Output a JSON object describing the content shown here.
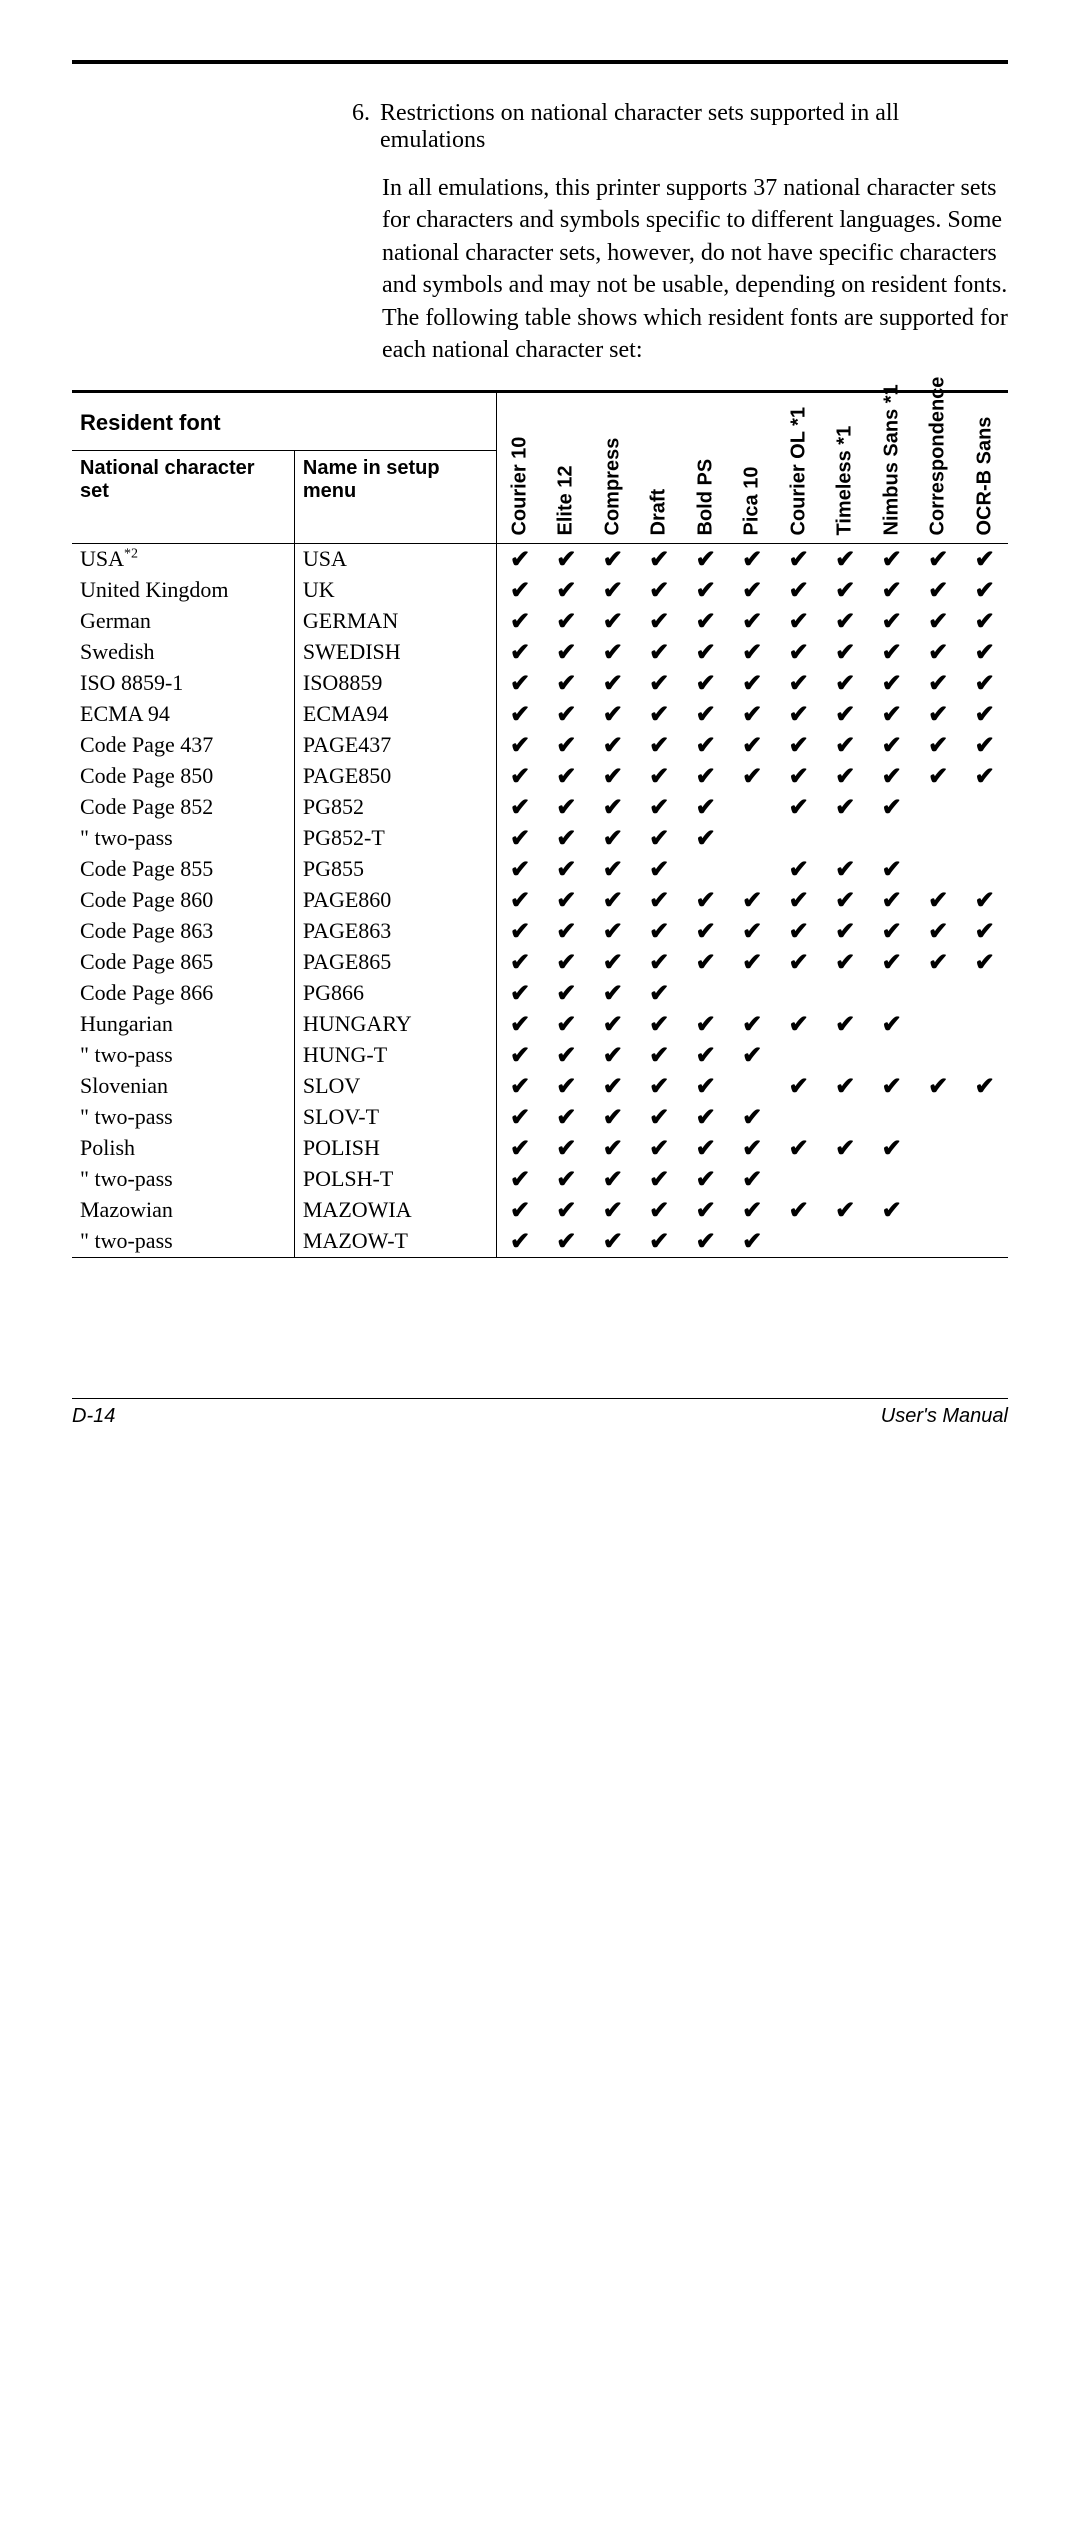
{
  "heading_num": "6.",
  "heading_text": "Restrictions on national character sets supported in all emulations",
  "body_para": "In all emulations, this printer supports 37 national character sets for characters and symbols specific to different languages.  Some national character sets, however, do not have specific characters and symbols and may not be usable, depending on resident fonts.  The following table shows which resident fonts are supported for each national character set:",
  "hdr_resident": "Resident font",
  "hdr_national": "National character set",
  "hdr_namein": "Name in setup menu",
  "font_cols": [
    "Courier 10",
    "Elite 12",
    "Compress",
    "Draft",
    "Bold PS",
    "Pica 10",
    "Courier OL *1",
    "Timeless *1",
    "Nimbus Sans *1",
    "Correspondence",
    "OCR-B Sans"
  ],
  "rows": [
    {
      "nat": "USA",
      "sup": "*2",
      "name": "USA",
      "c": [
        1,
        1,
        1,
        1,
        1,
        1,
        1,
        1,
        1,
        1,
        1
      ]
    },
    {
      "nat": "United Kingdom",
      "name": "UK",
      "c": [
        1,
        1,
        1,
        1,
        1,
        1,
        1,
        1,
        1,
        1,
        1
      ]
    },
    {
      "nat": "German",
      "name": "GERMAN",
      "c": [
        1,
        1,
        1,
        1,
        1,
        1,
        1,
        1,
        1,
        1,
        1
      ]
    },
    {
      "nat": "Swedish",
      "name": "SWEDISH",
      "c": [
        1,
        1,
        1,
        1,
        1,
        1,
        1,
        1,
        1,
        1,
        1
      ]
    },
    {
      "nat": "ISO 8859-1",
      "name": "ISO8859",
      "c": [
        1,
        1,
        1,
        1,
        1,
        1,
        1,
        1,
        1,
        1,
        1
      ]
    },
    {
      "nat": "ECMA 94",
      "name": "ECMA94",
      "c": [
        1,
        1,
        1,
        1,
        1,
        1,
        1,
        1,
        1,
        1,
        1
      ]
    },
    {
      "nat": "Code Page 437",
      "name": "PAGE437",
      "c": [
        1,
        1,
        1,
        1,
        1,
        1,
        1,
        1,
        1,
        1,
        1
      ]
    },
    {
      "nat": "Code Page 850",
      "name": "PAGE850",
      "c": [
        1,
        1,
        1,
        1,
        1,
        1,
        1,
        1,
        1,
        1,
        1
      ]
    },
    {
      "nat": "Code Page 852",
      "name": "PG852",
      "c": [
        1,
        1,
        1,
        1,
        1,
        0,
        1,
        1,
        1,
        0,
        0
      ]
    },
    {
      "nat": "\"    two-pass",
      "name": "PG852-T",
      "c": [
        1,
        1,
        1,
        1,
        1,
        0,
        0,
        0,
        0,
        0,
        0
      ]
    },
    {
      "nat": "Code Page 855",
      "name": "PG855",
      "c": [
        1,
        1,
        1,
        1,
        0,
        0,
        1,
        1,
        1,
        0,
        0
      ]
    },
    {
      "nat": "Code Page 860",
      "name": "PAGE860",
      "c": [
        1,
        1,
        1,
        1,
        1,
        1,
        1,
        1,
        1,
        1,
        1
      ]
    },
    {
      "nat": "Code Page 863",
      "name": "PAGE863",
      "c": [
        1,
        1,
        1,
        1,
        1,
        1,
        1,
        1,
        1,
        1,
        1
      ]
    },
    {
      "nat": "Code Page 865",
      "name": "PAGE865",
      "c": [
        1,
        1,
        1,
        1,
        1,
        1,
        1,
        1,
        1,
        1,
        1
      ]
    },
    {
      "nat": "Code Page 866",
      "name": "PG866",
      "c": [
        1,
        1,
        1,
        1,
        0,
        0,
        0,
        0,
        0,
        0,
        0
      ]
    },
    {
      "nat": "Hungarian",
      "name": "HUNGARY",
      "c": [
        1,
        1,
        1,
        1,
        1,
        1,
        1,
        1,
        1,
        0,
        0
      ]
    },
    {
      "nat": "\"    two-pass",
      "name": "HUNG-T",
      "c": [
        1,
        1,
        1,
        1,
        1,
        1,
        0,
        0,
        0,
        0,
        0
      ]
    },
    {
      "nat": "Slovenian",
      "name": "SLOV",
      "c": [
        1,
        1,
        1,
        1,
        1,
        0,
        1,
        1,
        1,
        1,
        1
      ]
    },
    {
      "nat": "\"    two-pass",
      "name": "SLOV-T",
      "c": [
        1,
        1,
        1,
        1,
        1,
        1,
        0,
        0,
        0,
        0,
        0
      ]
    },
    {
      "nat": "Polish",
      "name": "POLISH",
      "c": [
        1,
        1,
        1,
        1,
        1,
        1,
        1,
        1,
        1,
        0,
        0
      ]
    },
    {
      "nat": "\"    two-pass",
      "name": "POLSH-T",
      "c": [
        1,
        1,
        1,
        1,
        1,
        1,
        0,
        0,
        0,
        0,
        0
      ]
    },
    {
      "nat": "Mazowian",
      "name": "MAZOWIA",
      "c": [
        1,
        1,
        1,
        1,
        1,
        1,
        1,
        1,
        1,
        0,
        0
      ]
    },
    {
      "nat": "\"    two-pass",
      "name": "MAZOW-T",
      "c": [
        1,
        1,
        1,
        1,
        1,
        1,
        0,
        0,
        0,
        0,
        0
      ]
    }
  ],
  "check": "✔",
  "footer_left": "D-14",
  "footer_right": "User's Manual"
}
